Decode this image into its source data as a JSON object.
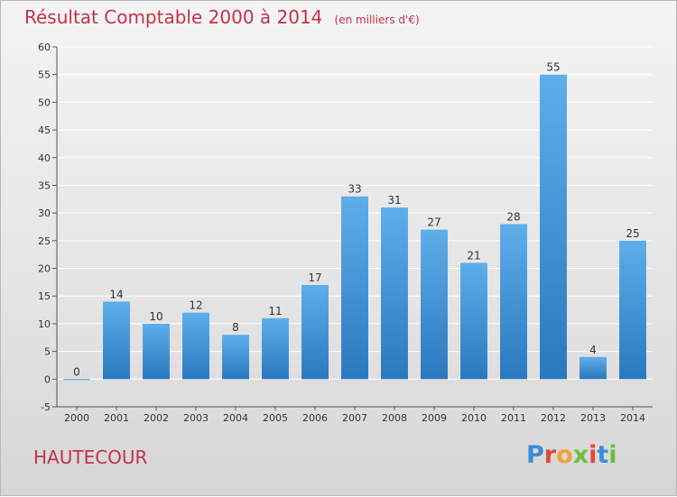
{
  "title": "Résultat Comptable 2000 à 2014",
  "subtitle": "(en milliers d'€)",
  "location": "HAUTECOUR",
  "logo_text": "Proxiti",
  "colors": {
    "bar_top": "#5eaeea",
    "bar_bottom": "#2a78bf",
    "title": "#c0344a",
    "grid": "#ffffff"
  },
  "chart_data": {
    "type": "bar",
    "title": "Résultat Comptable 2000 à 2014",
    "subtitle": "(en milliers d'€)",
    "categories": [
      "2000",
      "2001",
      "2002",
      "2003",
      "2004",
      "2005",
      "2006",
      "2007",
      "2008",
      "2009",
      "2010",
      "2011",
      "2012",
      "2013",
      "2014"
    ],
    "values": [
      0,
      14,
      10,
      12,
      8,
      11,
      17,
      33,
      31,
      27,
      21,
      28,
      55,
      4,
      25
    ],
    "ylim": [
      -5,
      60
    ],
    "yticks": [
      -5,
      0,
      5,
      10,
      15,
      20,
      25,
      30,
      35,
      40,
      45,
      50,
      55,
      60
    ],
    "grid": true,
    "data_labels": true
  }
}
